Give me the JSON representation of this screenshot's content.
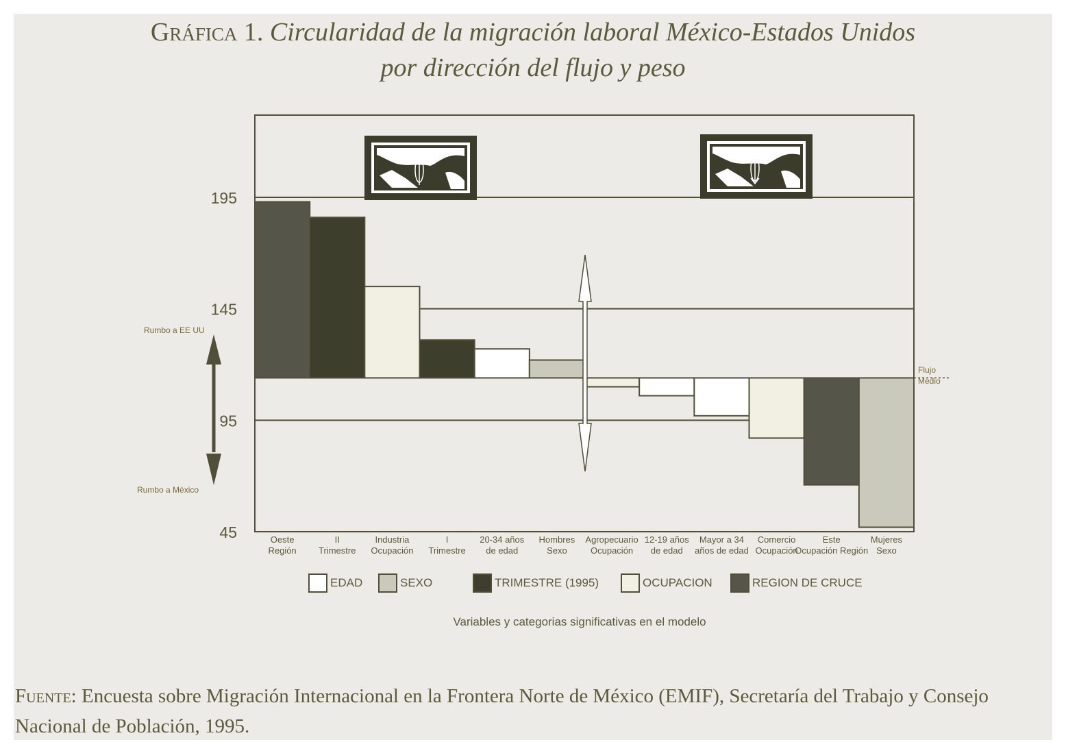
{
  "title_lead": "Gráfica 1.",
  "title_rest": "Circularidad de la migración laboral México-Estados Unidos",
  "subtitle": "por dirección del flujo y peso",
  "source_lead": "Fuente:",
  "source_text": "Encuesta sobre Migración Internacional en la Frontera Norte de México (EMIF), Secretaría del Trabajo y Consejo Nacional de Población, 1995.",
  "side_top_label": "Rumbo a EE UU",
  "side_bottom_label": "Rumbo a México",
  "flujo_label_1": "Flujo",
  "flujo_label_2": "Medio",
  "x_title": "Variables y categorias significativas en el modelo",
  "colors": {
    "EDAD": "#ffffff",
    "SEXO": "#c9c9bc",
    "TRIMESTRE (1995)": "#3e3e2c",
    "OCUPACION": "#f2f0e2",
    "REGION DE CRUCE": "#55554a",
    "line": "#4f4f3a",
    "text": "#5a5a3c"
  },
  "icons": [
    "map-mexico-usa-icon",
    "map-mexico-usa-icon"
  ],
  "chart_data": {
    "type": "bar",
    "baseline": 114,
    "ylim": [
      45,
      230
    ],
    "yticks": [
      195,
      145,
      95,
      45
    ],
    "reference_lines": [
      195,
      145,
      95
    ],
    "reference_line_label": "Flujo Medio",
    "categories": [
      {
        "line1": "Oeste",
        "line2": "Región",
        "group": "REGION DE CRUCE",
        "value": 193
      },
      {
        "line1": "II",
        "line2": "Trimestre",
        "group": "TRIMESTRE (1995)",
        "value": 186
      },
      {
        "line1": "Industria",
        "line2": "Ocupación",
        "group": "OCUPACION",
        "value": 155
      },
      {
        "line1": "I",
        "line2": "Trimestre",
        "group": "TRIMESTRE (1995)",
        "value": 131
      },
      {
        "line1": "20-34 años",
        "line2": "de edad",
        "group": "EDAD",
        "value": 127
      },
      {
        "line1": "Hombres",
        "line2": "Sexo",
        "group": "SEXO",
        "value": 122
      },
      {
        "line1": "Agropecuario",
        "line2": "Ocupación",
        "group": "OCUPACION",
        "value": 110
      },
      {
        "line1": "12-19 años",
        "line2": "de edad",
        "group": "EDAD",
        "value": 106
      },
      {
        "line1": "Mayor a 34",
        "line2": "años de edad",
        "group": "EDAD",
        "value": 97
      },
      {
        "line1": "Comercio",
        "line2": "Ocupación",
        "group": "OCUPACION",
        "value": 87
      },
      {
        "line1": "Este",
        "line2": "Ocupación Región",
        "group": "REGION DE CRUCE",
        "value": 66
      },
      {
        "line1": "Mujeres",
        "line2": "Sexo",
        "group": "SEXO",
        "value": 47
      }
    ],
    "legend": [
      "EDAD",
      "SEXO",
      "TRIMESTRE (1995)",
      "OCUPACION",
      "REGION DE CRUCE"
    ]
  }
}
